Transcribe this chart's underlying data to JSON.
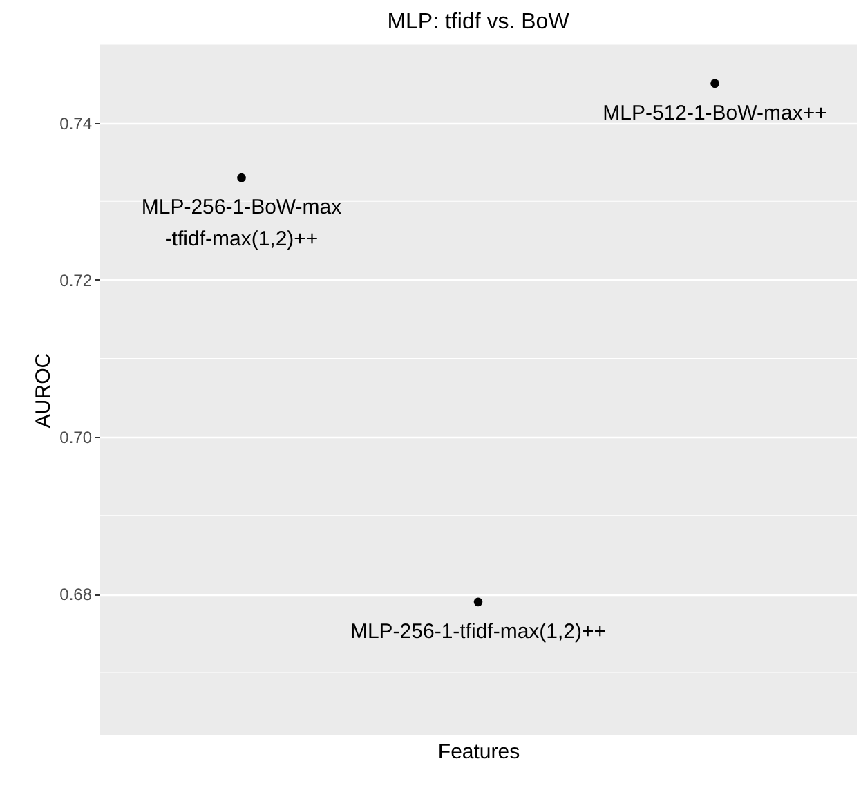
{
  "chart_data": {
    "type": "scatter",
    "title": "MLP: tfidf vs. BoW",
    "xlabel": "Features",
    "ylabel": "AUROC",
    "categories": [
      null,
      null,
      null
    ],
    "series": [
      {
        "name": "MLP-256-1-BoW-max\n-tfidf-max(1,2)++",
        "color": "#000000",
        "values": [
          0.733,
          null,
          null
        ]
      },
      {
        "name": "MLP-256-1-tfidf-max(1,2)++",
        "color": "#000000",
        "values": [
          null,
          0.679,
          null
        ]
      },
      {
        "name": "MLP-512-1-BoW-max++",
        "color": "#000000",
        "values": [
          null,
          null,
          0.745
        ]
      }
    ],
    "ylim": [
      0.662,
      0.75
    ],
    "yticks": [
      0.68,
      {
        "value": 0.7,
        "label": "0.70"
      },
      0.72,
      0.74
    ],
    "grid": "y",
    "tick_labels": "y",
    "marker": "circle",
    "legend": false
  }
}
